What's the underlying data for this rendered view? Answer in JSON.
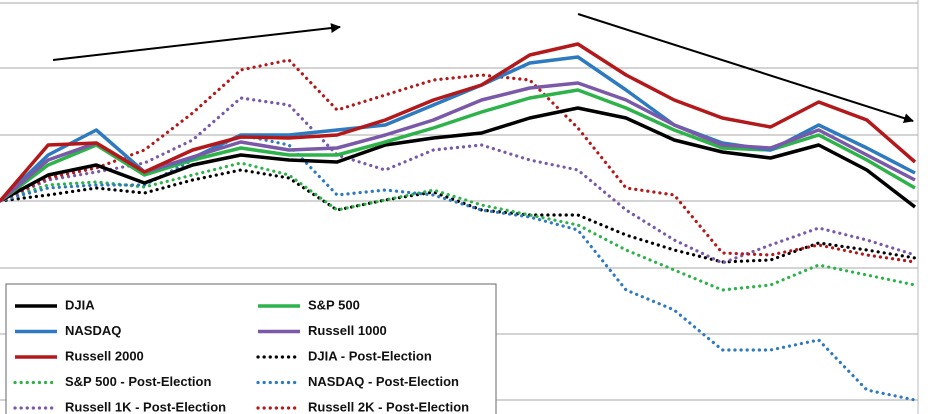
{
  "chart_data": {
    "type": "line",
    "categories": [
      null,
      null,
      null,
      null,
      null,
      null,
      null,
      null,
      null,
      null,
      null,
      null,
      null,
      null,
      null,
      null,
      null,
      null,
      null,
      null
    ],
    "ylim": [
      -213,
      201
    ],
    "yticks": [
      -199,
      -133,
      -67,
      0,
      66,
      133,
      198
    ],
    "grid": true,
    "series": [
      {
        "name": "DJIA",
        "color": "#000000",
        "style": "solid",
        "values": [
          0,
          26,
          36,
          18,
          36,
          46,
          41,
          39,
          56,
          63,
          68,
          83,
          93,
          83,
          61,
          49,
          43,
          56,
          31,
          -6
        ]
      },
      {
        "name": "S&P 500",
        "color": "#2db34a",
        "style": "solid",
        "values": [
          0,
          36,
          56,
          26,
          41,
          53,
          46,
          46,
          59,
          73,
          89,
          103,
          111,
          93,
          71,
          53,
          51,
          66,
          41,
          13
        ]
      },
      {
        "name": "NASDAQ",
        "color": "#2e7ac0",
        "style": "solid",
        "values": [
          0,
          46,
          71,
          29,
          43,
          66,
          66,
          71,
          76,
          96,
          116,
          138,
          144,
          111,
          76,
          58,
          51,
          76,
          53,
          28
        ]
      },
      {
        "name": "Russell 1000",
        "color": "#7a59a8",
        "style": "solid",
        "values": [
          0,
          41,
          58,
          29,
          44,
          59,
          51,
          53,
          66,
          81,
          101,
          113,
          118,
          101,
          76,
          56,
          53,
          71,
          46,
          21
        ]
      },
      {
        "name": "Russell 2000",
        "color": "#b3191a",
        "style": "solid",
        "values": [
          0,
          56,
          58,
          29,
          51,
          64,
          63,
          66,
          81,
          101,
          116,
          146,
          157,
          126,
          101,
          83,
          74,
          99,
          81,
          39
        ]
      },
      {
        "name": "DJIA - Post-Election",
        "color": "#000000",
        "style": "dotted",
        "values": [
          0,
          6,
          13,
          8,
          21,
          31,
          23,
          -9,
          1,
          9,
          -9,
          -14,
          -14,
          -34,
          -49,
          -61,
          -59,
          -42,
          -49,
          -57
        ]
      },
      {
        "name": "S&P 500 - Post-Election",
        "color": "#2db34a",
        "style": "dotted",
        "values": [
          0,
          16,
          19,
          14,
          26,
          38,
          26,
          -9,
          1,
          11,
          -4,
          -14,
          -24,
          -49,
          -69,
          -89,
          -84,
          -64,
          -74,
          -84
        ]
      },
      {
        "name": "NASDAQ - Post-Election",
        "color": "#2e7ac0",
        "style": "dotted",
        "values": [
          0,
          13,
          16,
          16,
          41,
          66,
          56,
          6,
          11,
          6,
          -9,
          -16,
          -29,
          -89,
          -109,
          -149,
          -149,
          -139,
          -189,
          -199
        ]
      },
      {
        "name": "Russell 1K - Post-Election",
        "color": "#7a59a8",
        "style": "dotted",
        "values": [
          0,
          21,
          29,
          38,
          61,
          103,
          96,
          46,
          31,
          51,
          56,
          41,
          31,
          -9,
          -39,
          -62,
          -44,
          -27,
          -39,
          -54
        ]
      },
      {
        "name": "Russell 2K - Post-Election",
        "color": "#b3191a",
        "style": "dotted",
        "values": [
          0,
          23,
          33,
          51,
          88,
          131,
          141,
          91,
          106,
          121,
          126,
          121,
          73,
          13,
          6,
          -52,
          -54,
          -44,
          -54,
          -61
        ]
      }
    ]
  }
}
